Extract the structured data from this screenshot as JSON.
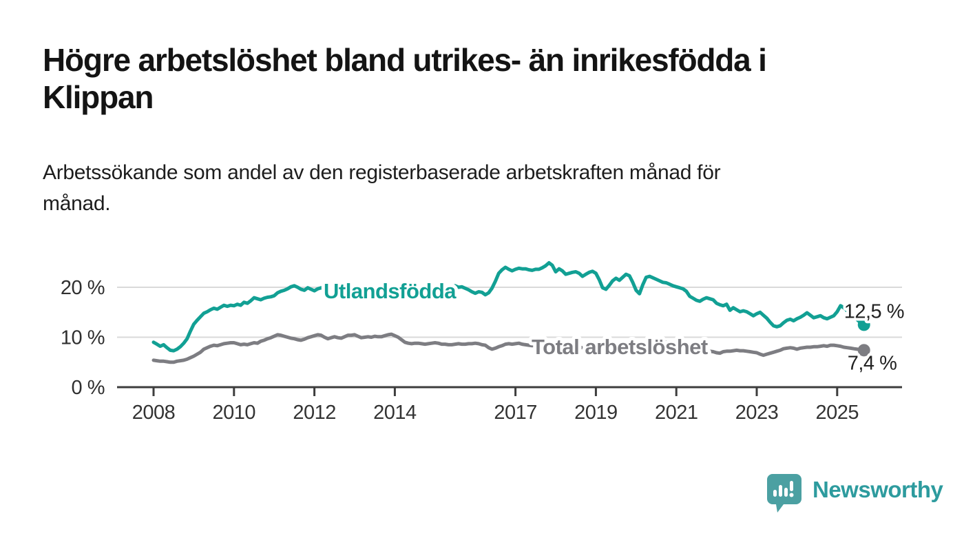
{
  "header": {
    "title_lines": [
      "Högre arbetslöshet bland utrikes- än inrikesfödda i",
      "Klippan"
    ],
    "subtitle_lines": [
      "Arbetssökande som andel av den registerbaserade arbetskraften månad för",
      "månad."
    ]
  },
  "chart_data": {
    "type": "line",
    "title": "Högre arbetslöshet bland utrikes- än inrikesfödda i Klippan",
    "subtitle": "Arbetssökande som andel av den registerbaserade arbetskraften månad för månad.",
    "unit": "%",
    "frequency": "monthly",
    "start": "2008-01",
    "end": "2025-09",
    "grid": "horizontal",
    "legend": "inline-labels",
    "ylim": [
      0,
      27
    ],
    "y_ticks": {
      "values": [
        20,
        10,
        0
      ],
      "labels": [
        "20 %",
        "10 %",
        "0 %"
      ]
    },
    "x_ticks": {
      "years": [
        2008,
        2010,
        2012,
        2014,
        2017,
        2019,
        2021,
        2023,
        2025
      ],
      "labels": [
        "2008",
        "2010",
        "2012",
        "2014",
        "2017",
        "2019",
        "2021",
        "2023",
        "2025"
      ]
    },
    "series": [
      {
        "name": "Total arbetslöshet",
        "slug": "total-arbetsloshet",
        "color": "#7d7d82",
        "end_value": 7.4,
        "end_label": "7,4 %",
        "values": [
          5.4,
          5.3,
          5.2,
          5.2,
          5.1,
          5.0,
          5.0,
          5.2,
          5.3,
          5.4,
          5.6,
          5.9,
          6.2,
          6.6,
          7.0,
          7.6,
          7.9,
          8.2,
          8.4,
          8.3,
          8.5,
          8.7,
          8.8,
          8.9,
          8.9,
          8.7,
          8.5,
          8.6,
          8.5,
          8.7,
          8.9,
          8.8,
          9.2,
          9.4,
          9.7,
          9.9,
          10.2,
          10.5,
          10.4,
          10.2,
          10.0,
          9.8,
          9.7,
          9.5,
          9.4,
          9.6,
          9.9,
          10.1,
          10.3,
          10.5,
          10.4,
          10.0,
          9.7,
          9.9,
          10.1,
          9.9,
          9.8,
          10.1,
          10.4,
          10.4,
          10.5,
          10.2,
          9.9,
          10.0,
          10.1,
          10.0,
          10.2,
          10.1,
          10.1,
          10.3,
          10.5,
          10.6,
          10.3,
          10.0,
          9.5,
          9.0,
          8.8,
          8.7,
          8.8,
          8.8,
          8.7,
          8.6,
          8.7,
          8.8,
          8.9,
          8.8,
          8.6,
          8.6,
          8.5,
          8.5,
          8.6,
          8.7,
          8.6,
          8.6,
          8.7,
          8.7,
          8.8,
          8.7,
          8.5,
          8.4,
          7.9,
          7.6,
          7.8,
          8.1,
          8.3,
          8.6,
          8.7,
          8.6,
          8.7,
          8.8,
          8.6,
          8.5,
          8.4,
          8.3,
          8.4,
          8.3,
          8.4,
          8.3,
          8.4,
          8.5,
          8.5,
          8.4,
          8.2,
          8.1,
          8.0,
          8.1,
          8.1,
          8.0,
          7.9,
          7.9,
          8.0,
          8.0,
          8.0,
          7.9,
          7.7,
          7.6,
          7.7,
          7.8,
          7.9,
          7.8,
          7.8,
          7.8,
          7.9,
          7.9,
          8.0,
          8.1,
          8.6,
          9.1,
          9.4,
          9.5,
          9.5,
          9.4,
          9.2,
          9.0,
          8.9,
          8.8,
          8.8,
          8.6,
          8.4,
          8.3,
          8.1,
          7.9,
          7.8,
          7.6,
          7.4,
          7.3,
          7.2,
          7.1,
          6.9,
          6.8,
          7.1,
          7.2,
          7.2,
          7.3,
          7.4,
          7.3,
          7.3,
          7.2,
          7.1,
          7.0,
          6.9,
          6.6,
          6.4,
          6.6,
          6.8,
          7.0,
          7.2,
          7.4,
          7.7,
          7.8,
          7.9,
          7.8,
          7.6,
          7.8,
          7.9,
          8.0,
          8.0,
          8.1,
          8.1,
          8.2,
          8.3,
          8.2,
          8.4,
          8.4,
          8.3,
          8.2,
          8.0,
          7.9,
          7.8,
          7.7,
          7.6,
          7.5,
          7.4
        ]
      },
      {
        "name": "Utlandsfödda",
        "slug": "utlandsfodda",
        "color": "#12a094",
        "end_value": 12.5,
        "end_label": "12,5 %",
        "values": [
          9.0,
          8.6,
          8.2,
          8.5,
          7.9,
          7.4,
          7.3,
          7.6,
          8.1,
          8.8,
          9.7,
          11.2,
          12.6,
          13.4,
          14.1,
          14.8,
          15.1,
          15.5,
          15.8,
          15.6,
          16.0,
          16.4,
          16.2,
          16.4,
          16.3,
          16.6,
          16.4,
          17.0,
          16.8,
          17.3,
          17.9,
          17.7,
          17.5,
          17.8,
          18.0,
          18.1,
          18.3,
          18.9,
          19.2,
          19.4,
          19.7,
          20.1,
          20.3,
          20.0,
          19.6,
          19.4,
          19.9,
          19.6,
          19.3,
          19.7,
          19.9,
          19.6,
          19.2,
          19.5,
          19.8,
          19.6,
          19.3,
          19.6,
          19.9,
          20.1,
          20.2,
          19.8,
          19.5,
          19.7,
          19.4,
          19.6,
          19.9,
          19.7,
          19.5,
          19.8,
          20.0,
          20.2,
          20.0,
          19.7,
          19.5,
          19.3,
          19.6,
          19.4,
          19.7,
          19.9,
          19.6,
          19.8,
          20.1,
          20.3,
          20.1,
          19.9,
          20.2,
          20.0,
          19.8,
          20.1,
          20.3,
          20.0,
          20.1,
          19.8,
          19.5,
          19.1,
          18.8,
          19.1,
          19.0,
          18.5,
          18.9,
          19.8,
          21.2,
          22.8,
          23.5,
          24.0,
          23.6,
          23.3,
          23.6,
          23.8,
          23.7,
          23.7,
          23.5,
          23.4,
          23.6,
          23.6,
          23.9,
          24.3,
          24.9,
          24.4,
          23.1,
          23.7,
          23.3,
          22.6,
          22.8,
          23.0,
          23.1,
          22.8,
          22.2,
          22.6,
          23.0,
          23.2,
          22.8,
          21.5,
          19.9,
          19.6,
          20.4,
          21.3,
          21.8,
          21.4,
          22.0,
          22.6,
          22.3,
          21.0,
          19.4,
          18.7,
          20.5,
          22.0,
          22.2,
          21.9,
          21.6,
          21.3,
          21.0,
          20.9,
          20.6,
          20.3,
          20.1,
          19.9,
          19.7,
          19.2,
          18.2,
          17.8,
          17.4,
          17.2,
          17.6,
          17.9,
          17.7,
          17.5,
          16.8,
          16.5,
          16.3,
          16.6,
          15.4,
          15.9,
          15.5,
          15.1,
          15.3,
          15.1,
          14.7,
          14.3,
          14.7,
          15.0,
          14.4,
          13.8,
          13.0,
          12.3,
          12.1,
          12.3,
          12.9,
          13.4,
          13.6,
          13.3,
          13.7,
          14.0,
          14.4,
          14.9,
          14.4,
          13.9,
          14.1,
          14.3,
          13.9,
          13.7,
          14.0,
          14.3,
          15.1,
          16.3,
          15.9,
          15.3,
          14.7,
          14.1,
          13.5,
          12.9,
          12.5
        ]
      }
    ],
    "colors": {
      "accent_teal": "#12a094",
      "gray": "#7d7d82",
      "grid": "#d9d9d9",
      "axis": "#3d3d3d",
      "text": "#333333"
    }
  },
  "footer": {
    "brand": "Newsworthy",
    "logo_icon": "newsworthy-speech-bubble-bar-chart-icon",
    "brand_color": "#2d9b9e",
    "bubble_color": "#4ba0a2"
  }
}
